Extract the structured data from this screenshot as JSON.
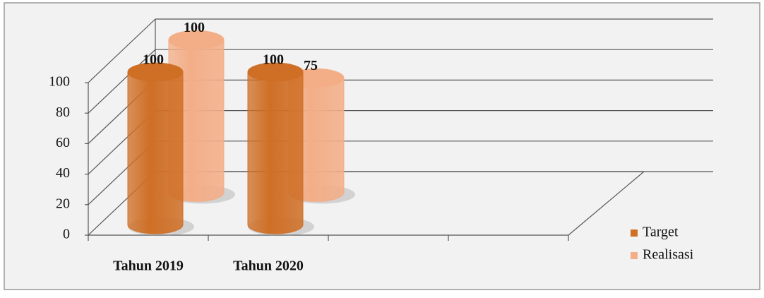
{
  "chart_data": {
    "type": "bar3d",
    "categories": [
      "Tahun 2019",
      "Tahun 2020",
      null,
      null
    ],
    "series": [
      {
        "name": "Target",
        "color": "#cf6f26",
        "values": [
          100,
          100,
          null,
          null
        ]
      },
      {
        "name": "Realisasi",
        "color": "#f3ae88",
        "values": [
          100,
          75,
          null,
          null
        ]
      }
    ],
    "ylim": [
      0,
      100
    ],
    "yticks": [
      0,
      20,
      40,
      60,
      80,
      100
    ],
    "grid": true,
    "legend": "right"
  }
}
